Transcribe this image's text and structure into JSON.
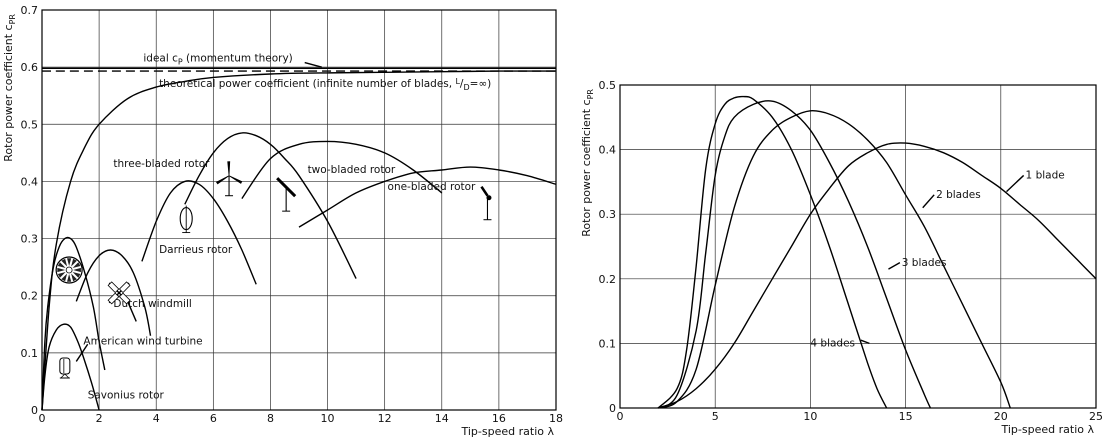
{
  "chart_data": [
    {
      "type": "line",
      "title": "",
      "xlabel": "Tip-speed ratio λ",
      "ylabel": "Rotor power coefficient c_PR",
      "xlim": [
        0,
        18
      ],
      "ylim": [
        0,
        0.7
      ],
      "xticks": [
        "0",
        "2",
        "4",
        "6",
        "8",
        "10",
        "12",
        "14",
        "16",
        "18"
      ],
      "yticks": [
        "0",
        "0.1",
        "0.2",
        "0.3",
        "0.4",
        "0.5",
        "0.6",
        "0.7"
      ],
      "grid": true,
      "series": [
        {
          "name": "ideal c_P (momentum theory)",
          "dashed": true,
          "x": [
            0,
            18
          ],
          "y": [
            0.593,
            0.593
          ]
        },
        {
          "name": "theoretical power coefficient (infinite number of blades, L/D=∞)",
          "x": [
            0,
            0.25,
            0.5,
            1,
            1.5,
            2,
            3,
            4,
            5,
            6,
            8,
            10,
            12,
            14,
            16,
            18
          ],
          "y": [
            0,
            0.18,
            0.29,
            0.4,
            0.46,
            0.5,
            0.545,
            0.565,
            0.575,
            0.582,
            0.588,
            0.59,
            0.591,
            0.592,
            0.593,
            0.593
          ]
        },
        {
          "name": "Savonius rotor",
          "x": [
            0,
            0.1,
            0.25,
            0.5,
            0.75,
            1,
            1.25,
            1.5,
            1.75,
            2
          ],
          "y": [
            0,
            0.06,
            0.11,
            0.14,
            0.15,
            0.145,
            0.12,
            0.085,
            0.045,
            0
          ]
        },
        {
          "name": "American wind turbine",
          "x": [
            0,
            0.1,
            0.2,
            0.4,
            0.6,
            0.8,
            1,
            1.2,
            1.5,
            1.8,
            2,
            2.2
          ],
          "y": [
            0,
            0.12,
            0.18,
            0.25,
            0.285,
            0.3,
            0.3,
            0.285,
            0.24,
            0.18,
            0.12,
            0.07
          ]
        },
        {
          "name": "Dutch windmill",
          "x": [
            1.2,
            1.6,
            2,
            2.4,
            2.8,
            3.2,
            3.6,
            3.8
          ],
          "y": [
            0.19,
            0.24,
            0.27,
            0.28,
            0.27,
            0.24,
            0.18,
            0.13
          ]
        },
        {
          "name": "Darrieus rotor",
          "x": [
            3.5,
            4,
            4.5,
            5,
            5.5,
            6,
            6.5,
            7,
            7.5
          ],
          "y": [
            0.26,
            0.33,
            0.38,
            0.4,
            0.395,
            0.37,
            0.33,
            0.28,
            0.22
          ]
        },
        {
          "name": "three-bladed rotor",
          "x": [
            5,
            5.5,
            6,
            6.5,
            7,
            7.5,
            8,
            8.5,
            9,
            10,
            11
          ],
          "y": [
            0.36,
            0.41,
            0.45,
            0.475,
            0.485,
            0.48,
            0.465,
            0.44,
            0.41,
            0.33,
            0.23
          ]
        },
        {
          "name": "two-bladed rotor",
          "x": [
            7,
            8,
            9,
            10,
            11,
            12,
            13,
            14
          ],
          "y": [
            0.37,
            0.44,
            0.465,
            0.47,
            0.465,
            0.45,
            0.42,
            0.38
          ]
        },
        {
          "name": "one-bladed rotor",
          "x": [
            9,
            10,
            11,
            12,
            13,
            14,
            15,
            16,
            17,
            18
          ],
          "y": [
            0.32,
            0.35,
            0.38,
            0.4,
            0.415,
            0.42,
            0.425,
            0.42,
            0.41,
            0.395
          ]
        }
      ],
      "annotations": [
        {
          "text": "ideal c",
          "sub": "P",
          "rest": " (momentum theory)"
        },
        {
          "text": "theoretical power coefficient (infinite number of blades, ",
          "frac_num": "L",
          "frac_den": "D",
          "rest": "=∞)"
        },
        {
          "text": "three-bladed rotor"
        },
        {
          "text": "two-bladed rotor"
        },
        {
          "text": "one-bladed rotor"
        },
        {
          "text": "Darrieus rotor"
        },
        {
          "text": "Dutch windmill"
        },
        {
          "text": "American wind turbine"
        },
        {
          "text": "Savonius rotor"
        }
      ]
    },
    {
      "type": "line",
      "title": "",
      "xlabel": "Tip-speed ratio λ",
      "ylabel": "Rotor power coefficient c_PR",
      "xlim": [
        0,
        25
      ],
      "ylim": [
        0,
        0.5
      ],
      "xticks": [
        "0",
        "5",
        "10",
        "15",
        "20",
        "25"
      ],
      "yticks": [
        "0",
        "0.1",
        "0.2",
        "0.3",
        "0.4",
        "0.5"
      ],
      "grid": true,
      "series": [
        {
          "name": "4 blades",
          "x": [
            2,
            3,
            3.5,
            4,
            4.5,
            5,
            5.5,
            6,
            6.5,
            7,
            8,
            9,
            10,
            11,
            12,
            13,
            13.5,
            14
          ],
          "y": [
            0,
            0.03,
            0.09,
            0.22,
            0.37,
            0.44,
            0.47,
            0.48,
            0.482,
            0.478,
            0.45,
            0.4,
            0.33,
            0.25,
            0.16,
            0.07,
            0.03,
            0
          ]
        },
        {
          "name": "3 blades",
          "x": [
            2,
            3,
            4,
            4.5,
            5,
            5.5,
            6,
            7,
            8,
            9,
            10,
            11,
            12,
            13,
            14,
            15,
            16,
            16.3
          ],
          "y": [
            0,
            0.02,
            0.12,
            0.24,
            0.36,
            0.42,
            0.45,
            0.47,
            0.475,
            0.46,
            0.43,
            0.38,
            0.32,
            0.25,
            0.17,
            0.09,
            0.02,
            0
          ]
        },
        {
          "name": "2 blades",
          "x": [
            2,
            3,
            4,
            5,
            6,
            7,
            8,
            9,
            10,
            11,
            12,
            13,
            14,
            15,
            16,
            17,
            18,
            19,
            20,
            20.5
          ],
          "y": [
            0,
            0.01,
            0.06,
            0.19,
            0.31,
            0.39,
            0.43,
            0.45,
            0.46,
            0.455,
            0.44,
            0.415,
            0.38,
            0.33,
            0.28,
            0.22,
            0.16,
            0.1,
            0.04,
            0
          ]
        },
        {
          "name": "1 blade",
          "x": [
            2,
            3,
            4,
            5,
            6,
            7,
            8,
            9,
            10,
            11,
            12,
            13,
            14,
            15,
            16,
            17,
            18,
            19,
            20,
            21,
            22,
            23,
            24,
            25
          ],
          "y": [
            0,
            0.01,
            0.03,
            0.06,
            0.1,
            0.15,
            0.2,
            0.25,
            0.3,
            0.34,
            0.375,
            0.395,
            0.408,
            0.41,
            0.405,
            0.395,
            0.38,
            0.36,
            0.34,
            0.315,
            0.29,
            0.26,
            0.23,
            0.2
          ]
        }
      ],
      "annotations": [
        {
          "text": "1 blade"
        },
        {
          "text": "2 blades"
        },
        {
          "text": "3 blades"
        },
        {
          "text": "4 blades"
        }
      ]
    }
  ]
}
